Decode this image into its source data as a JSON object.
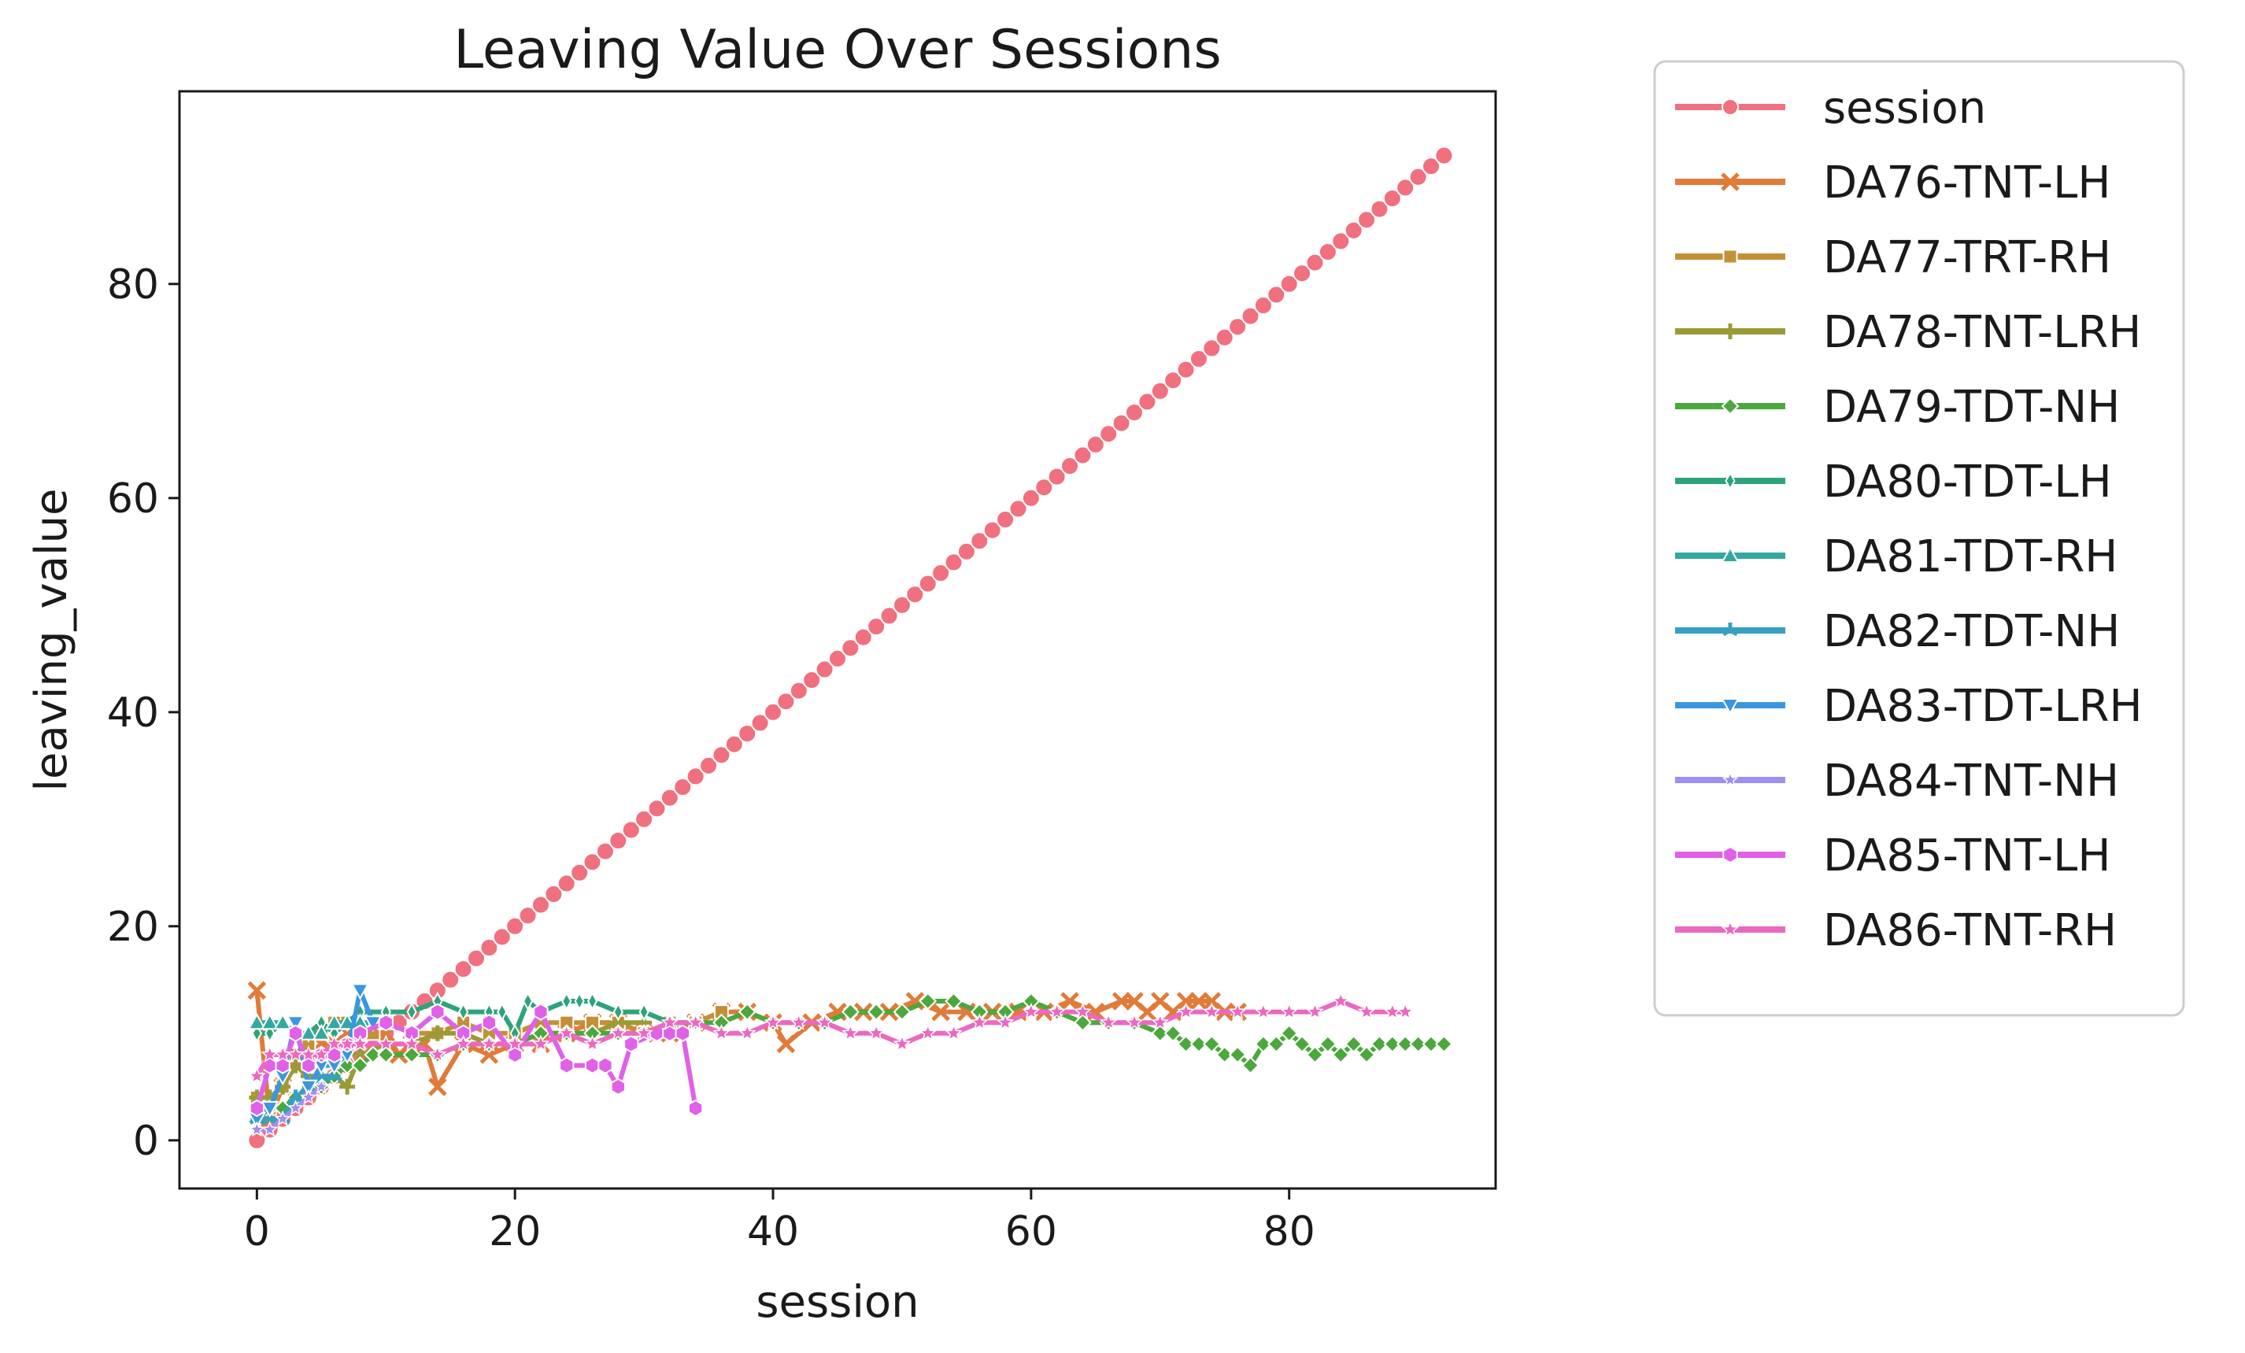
{
  "chart_data": {
    "type": "line",
    "title": "Leaving Value Over Sessions",
    "xlabel": "session",
    "ylabel": "leaving_value",
    "xlim": [
      -6,
      96
    ],
    "ylim": [
      -4.5,
      98
    ],
    "xticks": [
      0,
      20,
      40,
      60,
      80
    ],
    "yticks": [
      0,
      20,
      40,
      60,
      80
    ],
    "grid": false,
    "legend": "outside-right",
    "series": [
      {
        "name": "session",
        "color": "#f0707f",
        "marker": "circle",
        "x": "range:0-92",
        "y": "identity"
      },
      {
        "name": "DA76-TNT-LH",
        "color": "#e07b39",
        "marker": "x",
        "x": [
          0,
          1,
          2,
          3,
          4,
          5,
          6,
          7,
          8,
          9,
          10,
          11,
          12,
          13,
          14,
          16,
          18,
          20,
          22,
          24,
          26,
          28,
          30,
          32,
          34,
          36,
          38,
          40,
          41,
          43,
          45,
          47,
          49,
          51,
          53,
          55,
          57,
          59,
          61,
          63,
          65,
          67,
          68,
          69,
          70,
          71,
          72,
          73,
          74,
          75,
          76
        ],
        "y": [
          14,
          2,
          5,
          7,
          8,
          9,
          9,
          10,
          10,
          10,
          10,
          8,
          9,
          9,
          5,
          9,
          8,
          9,
          9,
          10,
          11,
          11,
          10,
          10,
          11,
          12,
          12,
          11,
          9,
          11,
          12,
          12,
          12,
          13,
          12,
          12,
          12,
          12,
          12,
          13,
          12,
          13,
          13,
          12,
          13,
          12,
          13,
          13,
          13,
          12,
          12
        ]
      },
      {
        "name": "DA77-TRT-RH",
        "color": "#c39035",
        "marker": "square",
        "x": [
          0,
          1,
          2,
          3,
          4,
          5,
          6,
          7,
          8,
          9,
          10,
          12,
          14,
          16,
          18,
          20,
          22,
          24,
          26,
          28,
          30,
          32,
          34,
          36
        ],
        "y": [
          4,
          3,
          5,
          8,
          9,
          10,
          11,
          11,
          10,
          10,
          11,
          10,
          10,
          11,
          10,
          10,
          11,
          11,
          11,
          11,
          10,
          11,
          11,
          12
        ]
      },
      {
        "name": "DA78-TNT-LRH",
        "color": "#9a9b36",
        "marker": "plus",
        "x": [
          0,
          1,
          2,
          3,
          4,
          5,
          6,
          7,
          8,
          10,
          12,
          14,
          16,
          18,
          20,
          22,
          24,
          26,
          28,
          30
        ],
        "y": [
          4,
          4,
          5,
          7,
          6,
          6,
          6,
          5,
          8,
          9,
          9,
          10,
          10,
          9,
          9,
          10,
          10,
          10,
          11,
          11
        ]
      },
      {
        "name": "DA79-TDT-NH",
        "color": "#4aa83c",
        "marker": "diamond",
        "x": [
          0,
          1,
          2,
          3,
          4,
          5,
          6,
          7,
          8,
          9,
          10,
          12,
          14,
          16,
          18,
          20,
          22,
          24,
          26,
          28,
          30,
          32,
          34,
          36,
          38,
          40,
          42,
          44,
          46,
          48,
          50,
          52,
          54,
          56,
          58,
          60,
          62,
          64,
          66,
          68,
          70,
          71,
          72,
          73,
          74,
          75,
          76,
          77,
          78,
          79,
          80,
          81,
          82,
          83,
          84,
          85,
          86,
          87,
          88,
          89,
          90,
          91,
          92
        ],
        "y": [
          2,
          3,
          3,
          4,
          5,
          5,
          6,
          7,
          7,
          8,
          8,
          8,
          8,
          9,
          9,
          9,
          10,
          10,
          10,
          10,
          10,
          11,
          11,
          11,
          12,
          11,
          11,
          11,
          12,
          12,
          12,
          13,
          13,
          12,
          12,
          13,
          12,
          11,
          11,
          11,
          10,
          10,
          9,
          9,
          9,
          8,
          8,
          7,
          9,
          9,
          10,
          9,
          8,
          9,
          8,
          9,
          8,
          9,
          9,
          9,
          9,
          9,
          9
        ]
      },
      {
        "name": "DA80-TDT-LH",
        "color": "#2ea37a",
        "marker": "thin_diamond",
        "x": [
          0,
          1,
          2,
          3,
          4,
          5,
          6,
          7,
          8,
          10,
          12,
          14,
          16,
          18,
          19,
          20,
          21,
          22,
          24,
          25,
          26,
          28,
          30,
          32,
          34
        ],
        "y": [
          10,
          10,
          11,
          10,
          10,
          11,
          10,
          11,
          12,
          12,
          12,
          13,
          12,
          12,
          12,
          10,
          13,
          12,
          13,
          13,
          13,
          12,
          12,
          11,
          11
        ]
      },
      {
        "name": "DA81-TDT-RH",
        "color": "#32a8a0",
        "marker": "triangle-up",
        "x": [
          0,
          1,
          2,
          3,
          4,
          5,
          6,
          7,
          8,
          10
        ],
        "y": [
          11,
          11,
          11,
          10,
          10,
          10,
          11,
          11,
          11,
          11
        ]
      },
      {
        "name": "DA82-TDT-NH",
        "color": "#36a0c0",
        "marker": "tri",
        "x": [
          0,
          1,
          2,
          3,
          4,
          5,
          6
        ],
        "y": [
          2,
          2,
          2,
          4,
          5,
          6,
          6
        ]
      },
      {
        "name": "DA83-TDT-LRH",
        "color": "#3a96e0",
        "marker": "triangle-down",
        "x": [
          0,
          1,
          2,
          3,
          4,
          5,
          6,
          7,
          8,
          9
        ],
        "y": [
          2,
          3,
          6,
          11,
          5,
          7,
          7,
          8,
          14,
          11
        ]
      },
      {
        "name": "DA84-TNT-NH",
        "color": "#a08ef0",
        "marker": "star-small",
        "x": [
          0,
          1,
          2,
          3,
          4,
          5
        ],
        "y": [
          1,
          1,
          2,
          3,
          4,
          5
        ]
      },
      {
        "name": "DA85-TNT-LH",
        "color": "#e160e8",
        "marker": "hexagon",
        "x": [
          0,
          1,
          2,
          3,
          4,
          5,
          6,
          7,
          8,
          10,
          12,
          14,
          16,
          18,
          20,
          22,
          24,
          26,
          27,
          28,
          29,
          31,
          32,
          33,
          34
        ],
        "y": [
          3,
          7,
          7,
          10,
          7,
          8,
          8,
          9,
          10,
          11,
          10,
          12,
          10,
          11,
          8,
          12,
          7,
          7,
          7,
          5,
          9,
          10,
          10,
          10,
          3
        ]
      },
      {
        "name": "DA86-TNT-RH",
        "color": "#ec68c0",
        "marker": "star",
        "x": [
          0,
          1,
          2,
          3,
          4,
          5,
          6,
          7,
          8,
          10,
          12,
          14,
          16,
          18,
          20,
          22,
          24,
          26,
          28,
          30,
          32,
          34,
          36,
          38,
          40,
          42,
          44,
          46,
          48,
          50,
          52,
          54,
          56,
          58,
          60,
          62,
          64,
          66,
          68,
          70,
          72,
          74,
          76,
          78,
          80,
          82,
          84,
          86,
          88,
          89
        ],
        "y": [
          6,
          8,
          8,
          8,
          8,
          8,
          9,
          9,
          9,
          9,
          9,
          8,
          9,
          9,
          9,
          9,
          10,
          9,
          10,
          10,
          11,
          11,
          10,
          10,
          11,
          11,
          11,
          10,
          10,
          9,
          10,
          10,
          11,
          11,
          12,
          12,
          12,
          11,
          11,
          11,
          12,
          12,
          12,
          12,
          12,
          12,
          13,
          12,
          12,
          12
        ]
      }
    ]
  }
}
